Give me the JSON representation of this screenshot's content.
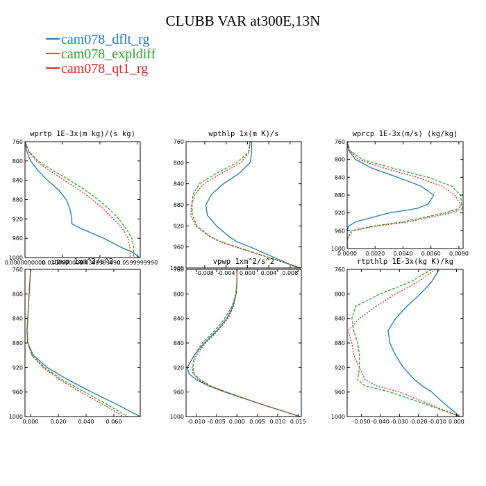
{
  "title": "CLUBB VAR at300E,13N",
  "legend": [
    {
      "label": "cam078_dflt_rg",
      "color": "#1f77b4",
      "dash": ""
    },
    {
      "label": "cam078_expldiff",
      "color": "#2ca02c",
      "dash": "4,2"
    },
    {
      "label": "cam078_qt1_rg",
      "color": "#d62728",
      "dash": "2,2"
    }
  ],
  "chart_data": [
    {
      "type": "line",
      "title": "wprtp  1E-3x(m kg)/(s kg)",
      "xlim": [
        0.0,
        0.0615
      ],
      "ylim": [
        760,
        1000
      ],
      "xticks": [
        0.0,
        0.02,
        0.04,
        0.06
      ],
      "xtick_labels": [
        "0.0000000000",
        "0.0200000000",
        "0.0399999990",
        "0.0599999990"
      ],
      "yticks": [
        760,
        800,
        840,
        880,
        920,
        960,
        1000
      ],
      "y": [
        760,
        780,
        800,
        820,
        840,
        860,
        880,
        900,
        920,
        930,
        940,
        960,
        980,
        990,
        1000
      ],
      "series": [
        {
          "name": "cam078_dflt_rg",
          "x": [
            0.0,
            0.001,
            0.003,
            0.007,
            0.012,
            0.018,
            0.022,
            0.024,
            0.025,
            0.025,
            0.03,
            0.042,
            0.052,
            0.058,
            0.061
          ]
        },
        {
          "name": "cam078_expldiff",
          "x": [
            0.0,
            0.002,
            0.007,
            0.015,
            0.024,
            0.032,
            0.039,
            0.045,
            0.05,
            0.052,
            0.054,
            0.057,
            0.058,
            0.058,
            0.058
          ]
        },
        {
          "name": "cam078_qt1_rg",
          "x": [
            0.0,
            0.002,
            0.006,
            0.013,
            0.021,
            0.029,
            0.036,
            0.042,
            0.047,
            0.05,
            0.052,
            0.055,
            0.056,
            0.056,
            0.056
          ]
        }
      ]
    },
    {
      "type": "line",
      "title": "wpthlp  1x(m K)/s",
      "xlim": [
        -0.0115,
        0.0101
      ],
      "ylim": [
        760,
        1000
      ],
      "xticks": [
        -0.008,
        -0.004,
        0.0,
        0.004,
        0.008
      ],
      "xtick_labels": [
        "-0.008",
        "-0.004",
        "0.000",
        "0.004",
        "0.008"
      ],
      "yticks": [
        760,
        800,
        840,
        880,
        920,
        960,
        1000
      ],
      "y": [
        760,
        780,
        800,
        820,
        840,
        860,
        880,
        900,
        920,
        940,
        950,
        960,
        980,
        1000
      ],
      "series": [
        {
          "name": "cam078_dflt_rg",
          "x": [
            0.0008,
            0.0008,
            0.0005,
            -0.0015,
            -0.0045,
            -0.0067,
            -0.0078,
            -0.0075,
            -0.0058,
            -0.0035,
            -0.002,
            0.0005,
            0.005,
            0.0095
          ]
        },
        {
          "name": "cam078_expldiff",
          "x": [
            0.0005,
            0.0002,
            -0.002,
            -0.0058,
            -0.009,
            -0.0102,
            -0.0104,
            -0.0103,
            -0.0095,
            -0.007,
            -0.005,
            -0.002,
            0.004,
            0.0101
          ]
        },
        {
          "name": "cam078_qt1_rg",
          "x": [
            0.0005,
            0.0003,
            -0.0012,
            -0.0048,
            -0.0082,
            -0.0098,
            -0.0105,
            -0.0106,
            -0.0097,
            -0.0072,
            -0.0052,
            -0.0022,
            0.0038,
            0.0101
          ]
        }
      ]
    },
    {
      "type": "line",
      "title": "wprcp  1E-3x(m/s) (kg/kg)",
      "xlim": [
        0.0,
        0.0083
      ],
      "ylim": [
        760,
        1000
      ],
      "xticks": [
        0.0,
        0.002,
        0.004,
        0.006,
        0.008
      ],
      "xtick_labels": [
        "0.0000",
        "0.0020",
        "0.0040",
        "0.0060",
        "0.0080"
      ],
      "yticks": [
        760,
        800,
        840,
        880,
        920,
        960,
        1000
      ],
      "y": [
        760,
        780,
        800,
        820,
        840,
        860,
        880,
        900,
        910,
        920,
        940,
        950,
        960,
        980,
        1000
      ],
      "series": [
        {
          "name": "cam078_dflt_rg",
          "x": [
            0.0,
            0.0001,
            0.0006,
            0.0018,
            0.0036,
            0.0053,
            0.0062,
            0.0058,
            0.005,
            0.003,
            0.0006,
            0.0001,
            0.0,
            0.0,
            0.0
          ]
        },
        {
          "name": "cam078_expldiff",
          "x": [
            0.0,
            0.0002,
            0.0011,
            0.0033,
            0.0058,
            0.0075,
            0.0081,
            0.0082,
            0.008,
            0.007,
            0.004,
            0.0018,
            0.0003,
            0.0,
            0.0
          ]
        },
        {
          "name": "cam078_qt1_rg",
          "x": [
            0.0,
            0.0002,
            0.0008,
            0.0027,
            0.005,
            0.0068,
            0.0077,
            0.0081,
            0.0083,
            0.0074,
            0.0044,
            0.002,
            0.0004,
            0.0,
            0.0
          ]
        }
      ]
    },
    {
      "type": "line",
      "title": "upwp  1xm^2/s^2",
      "xlim": [
        -0.004,
        0.079
      ],
      "ylim": [
        760,
        1000
      ],
      "xticks": [
        0.0,
        0.02,
        0.04,
        0.06
      ],
      "xtick_labels": [
        "0.000",
        "0.020",
        "0.040",
        "0.060"
      ],
      "yticks": [
        760,
        800,
        840,
        880,
        920,
        960,
        1000
      ],
      "y": [
        760,
        780,
        800,
        820,
        840,
        860,
        880,
        900,
        920,
        940,
        960,
        980,
        1000
      ],
      "series": [
        {
          "name": "cam078_dflt_rg",
          "x": [
            0.0,
            -0.0005,
            -0.001,
            -0.0015,
            -0.002,
            -0.0025,
            -0.002,
            0.002,
            0.012,
            0.027,
            0.044,
            0.062,
            0.079
          ]
        },
        {
          "name": "cam078_expldiff",
          "x": [
            0.0,
            -0.0005,
            -0.001,
            -0.0015,
            -0.002,
            -0.0025,
            -0.002,
            0.001,
            0.01,
            0.023,
            0.039,
            0.055,
            0.07
          ]
        },
        {
          "name": "cam078_qt1_rg",
          "x": [
            0.0,
            -0.0005,
            -0.001,
            -0.0015,
            -0.002,
            -0.0025,
            -0.002,
            0.001,
            0.009,
            0.021,
            0.036,
            0.052,
            0.067
          ]
        }
      ]
    },
    {
      "type": "line",
      "title": "vpwp  1xm^2/s^2",
      "xlim": [
        -0.0125,
        0.0158
      ],
      "ylim": [
        760,
        1000
      ],
      "xticks": [
        -0.01,
        -0.005,
        0.0,
        0.005,
        0.01,
        0.015
      ],
      "xtick_labels": [
        "-0.010",
        "-0.005",
        "0.000",
        "0.005",
        "0.010",
        "0.015"
      ],
      "yticks": [
        760,
        800,
        840,
        880,
        920,
        960,
        1000
      ],
      "y": [
        760,
        780,
        800,
        820,
        840,
        860,
        880,
        900,
        920,
        930,
        940,
        950,
        960,
        980,
        1000
      ],
      "series": [
        {
          "name": "cam078_dflt_rg",
          "x": [
            0.0,
            0.0,
            -0.0002,
            -0.001,
            -0.0025,
            -0.005,
            -0.008,
            -0.0105,
            -0.0122,
            -0.0118,
            -0.01,
            -0.007,
            -0.003,
            0.006,
            0.0155
          ]
        },
        {
          "name": "cam078_expldiff",
          "x": [
            0.0,
            0.0,
            -0.0003,
            -0.0012,
            -0.003,
            -0.0055,
            -0.0085,
            -0.0105,
            -0.0108,
            -0.0105,
            -0.009,
            -0.0065,
            -0.0025,
            0.006,
            0.0155
          ]
        },
        {
          "name": "cam078_qt1_rg",
          "x": [
            0.0,
            0.0,
            -0.0002,
            -0.0008,
            -0.0022,
            -0.0047,
            -0.0077,
            -0.01,
            -0.011,
            -0.0108,
            -0.0095,
            -0.0068,
            -0.0028,
            0.006,
            0.0155
          ]
        }
      ]
    },
    {
      "type": "line",
      "title": "rtpthlp  1E-3x(kg K)/kg",
      "xlim": [
        -0.0575,
        0.0035
      ],
      "ylim": [
        760,
        1000
      ],
      "xticks": [
        -0.05,
        -0.04,
        -0.03,
        -0.02,
        -0.01,
        0.0
      ],
      "xtick_labels": [
        "-0.050",
        "-0.040",
        "-0.030",
        "-0.020",
        "-0.010",
        "0.000"
      ],
      "yticks": [
        760,
        800,
        840,
        880,
        920,
        960,
        1000
      ],
      "y": [
        760,
        780,
        800,
        820,
        840,
        860,
        880,
        900,
        920,
        940,
        950,
        960,
        980,
        1000
      ],
      "series": [
        {
          "name": "cam078_dflt_rg",
          "x": [
            -0.009,
            -0.013,
            -0.019,
            -0.026,
            -0.032,
            -0.036,
            -0.035,
            -0.032,
            -0.028,
            -0.022,
            -0.018,
            -0.013,
            -0.006,
            0.002
          ]
        },
        {
          "name": "cam078_expldiff",
          "x": [
            -0.013,
            -0.024,
            -0.04,
            -0.053,
            -0.055,
            -0.054,
            -0.052,
            -0.051,
            -0.051,
            -0.052,
            -0.048,
            -0.035,
            -0.016,
            0.002
          ]
        },
        {
          "name": "cam078_qt1_rg",
          "x": [
            -0.011,
            -0.02,
            -0.032,
            -0.042,
            -0.051,
            -0.057,
            -0.055,
            -0.054,
            -0.051,
            -0.048,
            -0.042,
            -0.03,
            -0.014,
            0.002
          ]
        }
      ]
    }
  ]
}
